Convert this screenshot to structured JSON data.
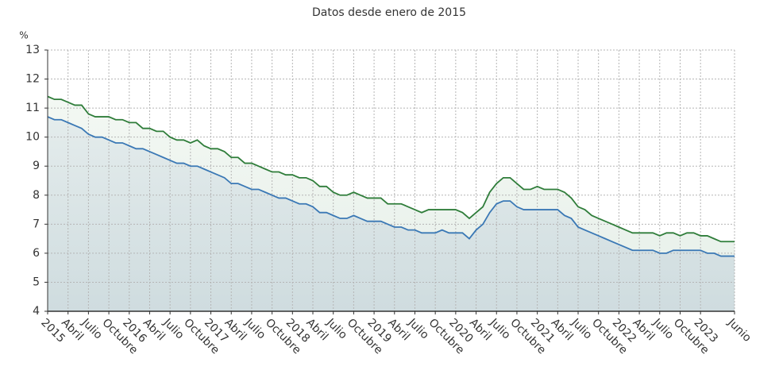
{
  "chart_data": {
    "type": "line",
    "title": "Datos desde enero de 2015",
    "y_label": "%",
    "categories": [
      "2015",
      null,
      null,
      "Abril",
      null,
      null,
      "Julio",
      null,
      null,
      "Octubre",
      null,
      null,
      "2016",
      null,
      null,
      "Abril",
      null,
      null,
      "Julio",
      null,
      null,
      "Octubre",
      null,
      null,
      "2017",
      null,
      null,
      "Abril",
      null,
      null,
      "Julio",
      null,
      null,
      "Octubre",
      null,
      null,
      "2018",
      null,
      null,
      "Abril",
      null,
      null,
      "Julio",
      null,
      null,
      "Octubre",
      null,
      null,
      "2019",
      null,
      null,
      "Abril",
      null,
      null,
      "Julio",
      null,
      null,
      "Octubre",
      null,
      null,
      "2020",
      null,
      null,
      "Abril",
      null,
      null,
      "Julio",
      null,
      null,
      "Octubre",
      null,
      null,
      "2021",
      null,
      null,
      "Abril",
      null,
      null,
      "Julio",
      null,
      null,
      "Octubre",
      null,
      null,
      "2022",
      null,
      null,
      "Abril",
      null,
      null,
      "Julio",
      null,
      null,
      "Octubre",
      null,
      null,
      "2023",
      null,
      null,
      null,
      null,
      "Junio"
    ],
    "series": [
      {
        "color": "#2f7d3a",
        "values": [
          11.4,
          11.3,
          11.3,
          11.2,
          11.1,
          11.1,
          10.8,
          10.7,
          10.7,
          10.7,
          10.6,
          10.6,
          10.5,
          10.5,
          10.3,
          10.3,
          10.2,
          10.2,
          10.0,
          9.9,
          9.9,
          9.8,
          9.9,
          9.7,
          9.6,
          9.6,
          9.5,
          9.3,
          9.3,
          9.1,
          9.1,
          9.0,
          8.9,
          8.8,
          8.8,
          8.7,
          8.7,
          8.6,
          8.6,
          8.5,
          8.3,
          8.3,
          8.1,
          8.0,
          8.0,
          8.1,
          8.0,
          7.9,
          7.9,
          7.9,
          7.7,
          7.7,
          7.7,
          7.6,
          7.5,
          7.4,
          7.5,
          7.5,
          7.5,
          7.5,
          7.5,
          7.4,
          7.2,
          7.4,
          7.6,
          8.1,
          8.4,
          8.6,
          8.6,
          8.4,
          8.2,
          8.2,
          8.3,
          8.2,
          8.2,
          8.2,
          8.1,
          7.9,
          7.6,
          7.5,
          7.3,
          7.2,
          7.1,
          7.0,
          6.9,
          6.8,
          6.7,
          6.7,
          6.7,
          6.7,
          6.6,
          6.7,
          6.7,
          6.6,
          6.7,
          6.7,
          6.6,
          6.6,
          6.5,
          6.4,
          6.4,
          6.4
        ]
      },
      {
        "color": "#3a78b5",
        "values": [
          10.7,
          10.6,
          10.6,
          10.5,
          10.4,
          10.3,
          10.1,
          10.0,
          10.0,
          9.9,
          9.8,
          9.8,
          9.7,
          9.6,
          9.6,
          9.5,
          9.4,
          9.3,
          9.2,
          9.1,
          9.1,
          9.0,
          9.0,
          8.9,
          8.8,
          8.7,
          8.6,
          8.4,
          8.4,
          8.3,
          8.2,
          8.2,
          8.1,
          8.0,
          7.9,
          7.9,
          7.8,
          7.7,
          7.7,
          7.6,
          7.4,
          7.4,
          7.3,
          7.2,
          7.2,
          7.3,
          7.2,
          7.1,
          7.1,
          7.1,
          7.0,
          6.9,
          6.9,
          6.8,
          6.8,
          6.7,
          6.7,
          6.7,
          6.8,
          6.7,
          6.7,
          6.7,
          6.5,
          6.8,
          7.0,
          7.4,
          7.7,
          7.8,
          7.8,
          7.6,
          7.5,
          7.5,
          7.5,
          7.5,
          7.5,
          7.5,
          7.3,
          7.2,
          6.9,
          6.8,
          6.7,
          6.6,
          6.5,
          6.4,
          6.3,
          6.2,
          6.1,
          6.1,
          6.1,
          6.1,
          6.0,
          6.0,
          6.1,
          6.1,
          6.1,
          6.1,
          6.1,
          6.0,
          6.0,
          5.9,
          5.9,
          5.9
        ]
      }
    ],
    "ylim": [
      4,
      13
    ],
    "yticks": [
      4,
      5,
      6,
      7,
      8,
      9,
      10,
      11,
      12,
      13
    ],
    "grid": true
  }
}
